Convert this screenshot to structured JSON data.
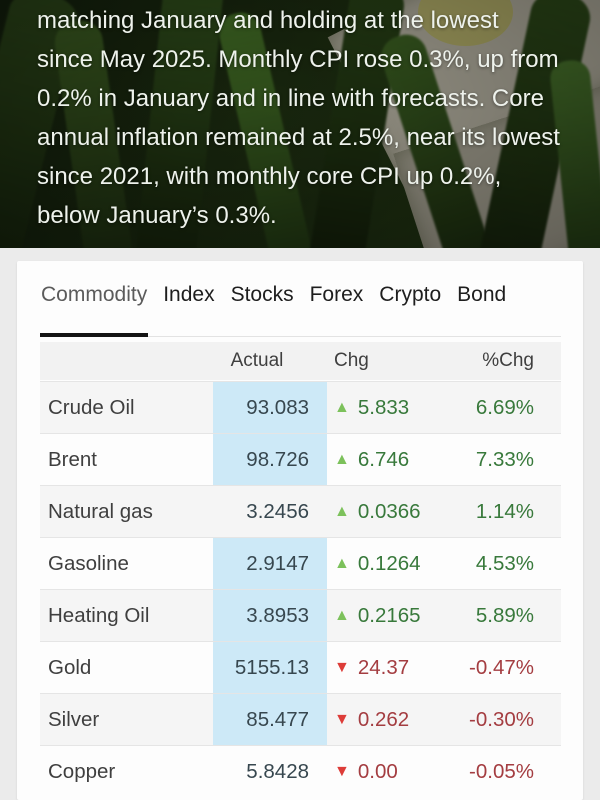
{
  "hero": {
    "lines": [
      "matching January and holding at the lowest",
      "since May 2025. Monthly CPI rose 0.3%, up from",
      "0.2% in January and in line with forecasts. Core",
      "annual inflation remained at 2.5%, near its lowest",
      "since 2021, with monthly core CPI up 0.2%,",
      "below January’s 0.3%."
    ]
  },
  "market_card": {
    "tabs": [
      {
        "label": "Commodity",
        "active": true
      },
      {
        "label": "Index",
        "active": false
      },
      {
        "label": "Stocks",
        "active": false
      },
      {
        "label": "Forex",
        "active": false
      },
      {
        "label": "Crypto",
        "active": false
      },
      {
        "label": "Bond",
        "active": false
      }
    ],
    "table": {
      "headers": {
        "name": "",
        "actual": "Actual",
        "chg": "Chg",
        "pchg": "%Chg"
      },
      "rows": [
        {
          "name": "Crude Oil",
          "actual": "93.083",
          "arrow": "▲",
          "dir": "up",
          "chg": "5.833",
          "pchg": "6.69%",
          "highlight": true
        },
        {
          "name": "Brent",
          "actual": "98.726",
          "arrow": "▲",
          "dir": "up",
          "chg": "6.746",
          "pchg": "7.33%",
          "highlight": true
        },
        {
          "name": "Natural gas",
          "actual": "3.2456",
          "arrow": "▲",
          "dir": "up",
          "chg": "0.0366",
          "pchg": "1.14%",
          "highlight": false
        },
        {
          "name": "Gasoline",
          "actual": "2.9147",
          "arrow": "▲",
          "dir": "up",
          "chg": "0.1264",
          "pchg": "4.53%",
          "highlight": true
        },
        {
          "name": "Heating Oil",
          "actual": "3.8953",
          "arrow": "▲",
          "dir": "up",
          "chg": "0.2165",
          "pchg": "5.89%",
          "highlight": true
        },
        {
          "name": "Gold",
          "actual": "5155.13",
          "arrow": "▼",
          "dir": "down",
          "chg": "24.37",
          "pchg": "-0.47%",
          "highlight": true
        },
        {
          "name": "Silver",
          "actual": "85.477",
          "arrow": "▼",
          "dir": "down",
          "chg": "0.262",
          "pchg": "-0.30%",
          "highlight": true
        },
        {
          "name": "Copper",
          "actual": "5.8428",
          "arrow": "▼",
          "dir": "down",
          "chg": "0.00",
          "pchg": "-0.05%",
          "highlight": false
        }
      ]
    },
    "icons": {
      "up_arrow": "▲",
      "down_arrow": "▼"
    }
  },
  "colors": {
    "up_text": "#38793b",
    "up_arrow": "#7cc15b",
    "down_text": "#a43d41",
    "down_arrow": "#dd3c38",
    "actual_highlight": "#cde9f7",
    "actual_text": "#37474f",
    "active_tab_underline": "#141414"
  }
}
